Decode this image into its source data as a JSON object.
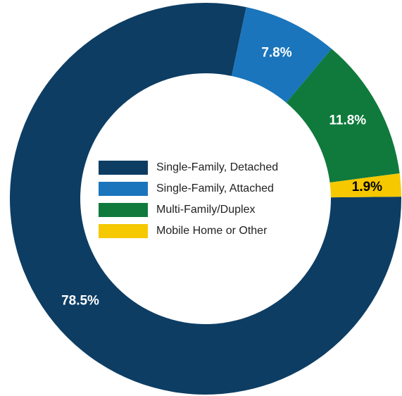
{
  "chart_data": {
    "type": "donut",
    "categories": [
      "Single-Family, Detached",
      "Single-Family, Attached",
      "Multi-Family/Duplex",
      "Mobile Home or Other"
    ],
    "values": [
      78.5,
      7.8,
      11.8,
      1.9
    ],
    "value_labels": [
      "78.5%",
      "7.8%",
      "11.8%",
      "1.9%"
    ],
    "colors": [
      "#0d3d63",
      "#1a75bc",
      "#0f7a3c",
      "#f5c800"
    ],
    "legend": "center"
  }
}
